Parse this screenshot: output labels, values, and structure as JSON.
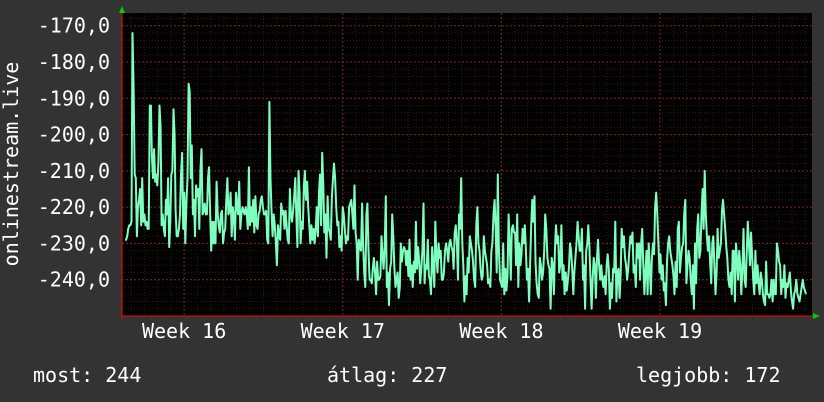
{
  "chart_data": {
    "type": "line",
    "ylabel": "onlinestream.live",
    "y_ticks": [
      "-170,0",
      "-180,0",
      "-190,0",
      "-200,0",
      "-210,0",
      "-220,0",
      "-230,0",
      "-240,0"
    ],
    "y_tick_values": [
      -170,
      -180,
      -190,
      -200,
      -210,
      -220,
      -230,
      -240
    ],
    "x_ticks": [
      "Week 16",
      "Week 17",
      "Week 18",
      "Week 19"
    ],
    "x_tick_positions": [
      1,
      13,
      25,
      37
    ],
    "xlim": [
      -3.7,
      48.5
    ],
    "ylim": [
      -250,
      -166.5
    ],
    "grid": true,
    "colors": {
      "line": "#7fffbf",
      "plot_bg": "#000000",
      "page_bg": "#333333",
      "grid": "#6b1e1e",
      "axis": "#ff0000",
      "arrow": "#00cc00"
    },
    "series": [
      {
        "values": [
          -229,
          -229,
          -228,
          -226,
          -225,
          -225,
          -224,
          -172,
          -187,
          -211,
          -212,
          -228,
          -220,
          -218,
          -215,
          -225,
          -212,
          -224,
          -222,
          -225,
          -224,
          -226,
          -226,
          -192,
          -192,
          -206,
          -212,
          -204,
          -213,
          -211,
          -214,
          -208,
          -192,
          -198,
          -225,
          -222,
          -226,
          -228,
          -218,
          -222,
          -212,
          -231,
          -224,
          -211,
          -210,
          -193,
          -200,
          -221,
          -228,
          -228,
          -226,
          -222,
          -211,
          -205,
          -226,
          -216,
          -230,
          -219,
          -212,
          -186,
          -188,
          -212,
          -203,
          -222,
          -218,
          -228,
          -214,
          -217,
          -215,
          -226,
          -210,
          -204,
          -222,
          -221,
          -219,
          -222,
          -222,
          -212,
          -209,
          -221,
          -232,
          -224,
          -230,
          -224,
          -230,
          -213,
          -222,
          -225,
          -227,
          -222,
          -221,
          -230,
          -227,
          -226,
          -218,
          -212,
          -222,
          -221,
          -216,
          -228,
          -220,
          -222,
          -229,
          -216,
          -220,
          -222,
          -213,
          -226,
          -222,
          -220,
          -221,
          -222,
          -220,
          -222,
          -226,
          -209,
          -225,
          -220,
          -224,
          -218,
          -227,
          -217,
          -225,
          -226,
          -222,
          -221,
          -218,
          -217,
          -220,
          -222,
          -222,
          -221,
          -229,
          -230,
          -191,
          -212,
          -221,
          -228,
          -222,
          -225,
          -230,
          -236,
          -225,
          -228,
          -229,
          -219,
          -222,
          -221,
          -226,
          -221,
          -225,
          -229,
          -230,
          -215,
          -222,
          -224,
          -221,
          -217,
          -212,
          -222,
          -231,
          -210,
          -216,
          -230,
          -224,
          -226,
          -214,
          -210,
          -218,
          -213,
          -220,
          -225,
          -230,
          -225,
          -229,
          -226,
          -230,
          -226,
          -220,
          -228,
          -216,
          -211,
          -225,
          -205,
          -214,
          -227,
          -222,
          -234,
          -217,
          -226,
          -227,
          -229,
          -217,
          -212,
          -208,
          -212,
          -220,
          -225,
          -224,
          -231,
          -228,
          -232,
          -220,
          -222,
          -226,
          -230,
          -228,
          -229,
          -220,
          -219,
          -218,
          -222,
          -226,
          -214,
          -227,
          -230,
          -240,
          -229,
          -231,
          -232,
          -219,
          -230,
          -238,
          -242,
          -222,
          -219,
          -232,
          -240,
          -240,
          -241,
          -237,
          -234,
          -238,
          -244,
          -235,
          -240,
          -240,
          -239,
          -228,
          -233,
          -237,
          -231,
          -217,
          -242,
          -238,
          -247,
          -237,
          -235,
          -222,
          -228,
          -237,
          -242,
          -240,
          -238,
          -245,
          -242,
          -230,
          -235,
          -232,
          -231,
          -232,
          -236,
          -232,
          -239,
          -229,
          -240,
          -236,
          -242,
          -235,
          -238,
          -224,
          -237,
          -231,
          -235,
          -241,
          -237,
          -232,
          -219,
          -241,
          -236,
          -237,
          -229,
          -239,
          -240,
          -244,
          -231,
          -236,
          -242,
          -224,
          -233,
          -238,
          -230,
          -234,
          -232,
          -240,
          -240,
          -238,
          -232,
          -230,
          -232,
          -235,
          -230,
          -229,
          -231,
          -232,
          -237,
          -227,
          -225,
          -230,
          -240,
          -222,
          -226,
          -212,
          -230,
          -236,
          -246,
          -239,
          -244,
          -234,
          -238,
          -228,
          -230,
          -232,
          -235,
          -240,
          -242,
          -225,
          -220,
          -230,
          -232,
          -237,
          -240,
          -239,
          -228,
          -232,
          -234,
          -236,
          -241,
          -240,
          -242,
          -232,
          -230,
          -222,
          -218,
          -226,
          -238,
          -211,
          -232,
          -240,
          -241,
          -242,
          -230,
          -244,
          -237,
          -243,
          -239,
          -222,
          -230,
          -240,
          -226,
          -225,
          -227,
          -227,
          -236,
          -222,
          -242,
          -230,
          -236,
          -233,
          -226,
          -230,
          -225,
          -231,
          -240,
          -237,
          -246,
          -235,
          -225,
          -218,
          -224,
          -217,
          -235,
          -241,
          -244,
          -245,
          -234,
          -236,
          -240,
          -238,
          -232,
          -222,
          -226,
          -234,
          -236,
          -237,
          -248,
          -234,
          -236,
          -244,
          -232,
          -225,
          -230,
          -228,
          -238,
          -236,
          -225,
          -240,
          -236,
          -244,
          -238,
          -243,
          -240,
          -237,
          -230,
          -232,
          -237,
          -244,
          -238,
          -234,
          -230,
          -224,
          -228,
          -232,
          -232,
          -226,
          -240,
          -236,
          -248,
          -232,
          -230,
          -225,
          -231,
          -240,
          -248,
          -240,
          -234,
          -236,
          -245,
          -234,
          -229,
          -236,
          -240,
          -236,
          -240,
          -242,
          -239,
          -244,
          -236,
          -233,
          -237,
          -248,
          -241,
          -245,
          -237,
          -238,
          -224,
          -246,
          -238,
          -237,
          -245,
          -238,
          -226,
          -231,
          -228,
          -234,
          -236,
          -240,
          -237,
          -232,
          -228,
          -230,
          -227,
          -238,
          -236,
          -242,
          -230,
          -234,
          -230,
          -240,
          -230,
          -226,
          -236,
          -244,
          -238,
          -232,
          -244,
          -230,
          -237,
          -244,
          -234,
          -230,
          -233,
          -220,
          -216,
          -222,
          -230,
          -238,
          -233,
          -240,
          -236,
          -243,
          -241,
          -247,
          -235,
          -230,
          -228,
          -232,
          -234,
          -236,
          -239,
          -244,
          -235,
          -242,
          -226,
          -224,
          -238,
          -234,
          -231,
          -230,
          -222,
          -218,
          -241,
          -236,
          -232,
          -234,
          -240,
          -244,
          -236,
          -248,
          -230,
          -241,
          -226,
          -222,
          -234,
          -232,
          -222,
          -215,
          -226,
          -210,
          -222,
          -228,
          -232,
          -228,
          -235,
          -241,
          -230,
          -228,
          -236,
          -244,
          -238,
          -226,
          -234,
          -232,
          -230,
          -221,
          -218,
          -222,
          -226,
          -231,
          -234,
          -240,
          -242,
          -238,
          -244,
          -232,
          -232,
          -246,
          -230,
          -234,
          -240,
          -232,
          -236,
          -244,
          -237,
          -226,
          -240,
          -242,
          -233,
          -224,
          -230,
          -236,
          -227,
          -233,
          -240,
          -244,
          -232,
          -241,
          -236,
          -241,
          -244,
          -238,
          -240,
          -244,
          -246,
          -247,
          -235,
          -244,
          -244,
          -245,
          -244,
          -240,
          -246,
          -240,
          -244,
          -244,
          -230,
          -232,
          -235,
          -236,
          -244,
          -240,
          -242,
          -236,
          -245,
          -241,
          -242,
          -240,
          -238,
          -243,
          -246,
          -248,
          -244,
          -243,
          -240,
          -244,
          -245,
          -246,
          -244,
          -242,
          -240,
          -242,
          -243,
          -244
        ]
      }
    ]
  },
  "stats": {
    "current": "most: 244",
    "average": "átlag: 227",
    "best": "legjobb: 172"
  }
}
